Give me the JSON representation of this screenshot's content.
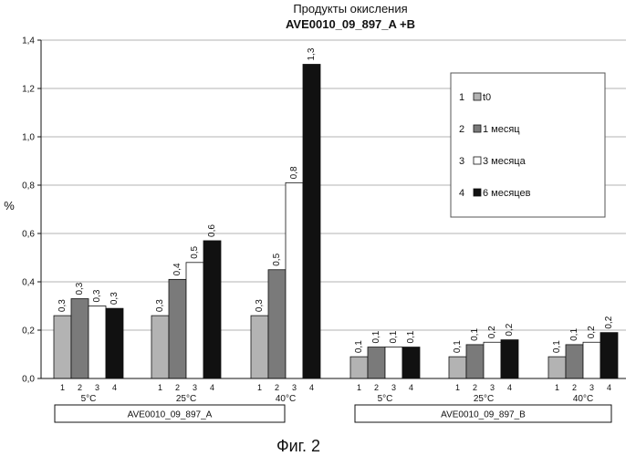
{
  "chart_data": {
    "type": "bar",
    "title": "Продукты окисления",
    "subtitle": "AVE0010_09_897_A +B",
    "ylabel": "%",
    "ylim": [
      0,
      1.4
    ],
    "yticks": [
      "0,0",
      "0,2",
      "0,4",
      "0,6",
      "0,8",
      "1,0",
      "1,2",
      "1,4"
    ],
    "grid": true,
    "legend_position": "right",
    "legend": [
      {
        "num": "1",
        "name": "t0"
      },
      {
        "num": "2",
        "name": "1 месяц"
      },
      {
        "num": "3",
        "name": "3 месяца"
      },
      {
        "num": "4",
        "name": "6 месяцев"
      }
    ],
    "series_colors": [
      "#b3b3b3",
      "#7a7a7a",
      "#ffffff",
      "#111111"
    ],
    "bar_numbers": [
      "1",
      "2",
      "3",
      "4"
    ],
    "groups": [
      {
        "label": "AVE0010_09_897_A",
        "subgroups": [
          {
            "label": "5°C",
            "values": [
              0.26,
              0.33,
              0.3,
              0.29
            ],
            "data_labels": [
              "0,3",
              "0,3",
              "0,3",
              "0,3"
            ]
          },
          {
            "label": "25°C",
            "values": [
              0.26,
              0.41,
              0.48,
              0.57
            ],
            "data_labels": [
              "0,3",
              "0,4",
              "0,5",
              "0,6"
            ]
          },
          {
            "label": "40°C",
            "values": [
              0.26,
              0.45,
              0.81,
              1.3
            ],
            "data_labels": [
              "0,3",
              "0,5",
              "0,8",
              "1,3"
            ]
          }
        ]
      },
      {
        "label": "AVE0010_09_897_B",
        "subgroups": [
          {
            "label": "5°C",
            "values": [
              0.09,
              0.13,
              0.13,
              0.13
            ],
            "data_labels": [
              "0,1",
              "0,1",
              "0,1",
              "0,1"
            ]
          },
          {
            "label": "25°C",
            "values": [
              0.09,
              0.14,
              0.15,
              0.16
            ],
            "data_labels": [
              "0,1",
              "0,1",
              "0,2",
              "0,2"
            ]
          },
          {
            "label": "40°C",
            "values": [
              0.09,
              0.14,
              0.15,
              0.19
            ],
            "data_labels": [
              "0,1",
              "0,1",
              "0,2",
              "0,2"
            ]
          }
        ]
      }
    ]
  },
  "caption": "Фиг. 2"
}
